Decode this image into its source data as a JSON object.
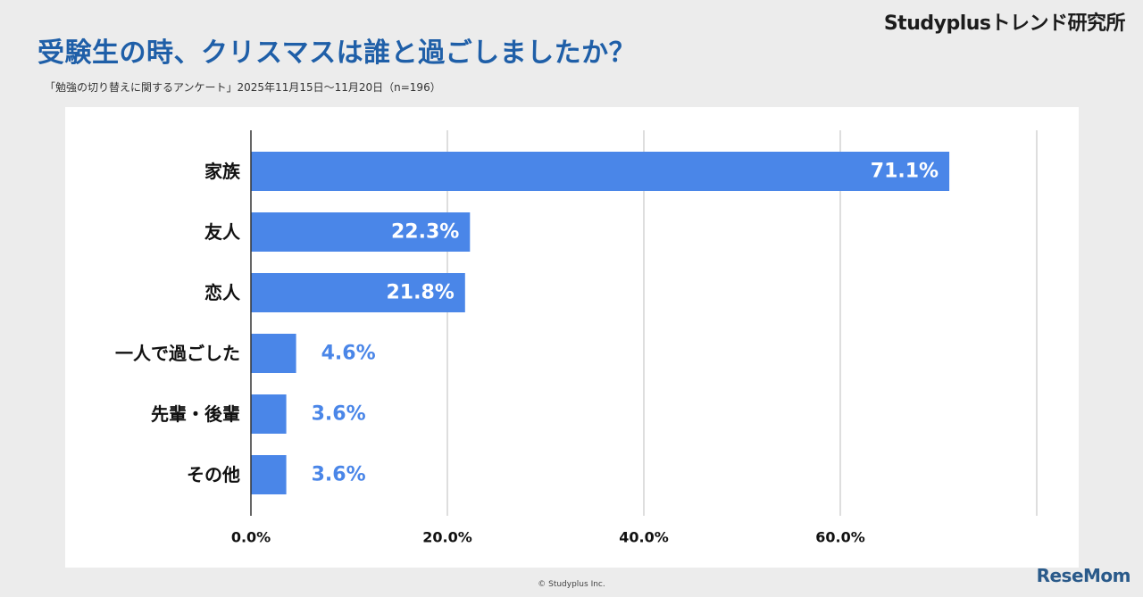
{
  "header": {
    "brand": "Studyplusトレンド研究所",
    "title": "受験生の時、クリスマスは誰と過ごしましたか？",
    "subtitle": "「勉強の切り替えに関するアンケート」2025年11月15日〜11月20日（n=196）"
  },
  "footer": {
    "copyright": "© Studyplus Inc.",
    "watermark": "ReseMom"
  },
  "colors": {
    "bar": "#4a86e8",
    "title": "#1f5fa8",
    "outside_label": "#4a86e8",
    "inside_label": "#ffffff",
    "grid": "#c8c8c8"
  },
  "chart_data": {
    "type": "bar",
    "orientation": "horizontal",
    "categories": [
      "家族",
      "友人",
      "恋人",
      "一人で過ごした",
      "先輩・後輩",
      "その他"
    ],
    "values": [
      71.1,
      22.3,
      21.8,
      4.6,
      3.6,
      3.6
    ],
    "value_labels": [
      "71.1%",
      "22.3%",
      "21.8%",
      "4.6%",
      "3.6%",
      "3.6%"
    ],
    "xlim": [
      0,
      80
    ],
    "xticks": [
      0,
      20,
      40,
      60,
      80
    ],
    "xtick_labels": [
      "0.0%",
      "20.0%",
      "40.0%",
      "60.0%",
      ""
    ],
    "grid": true,
    "legend": false
  }
}
